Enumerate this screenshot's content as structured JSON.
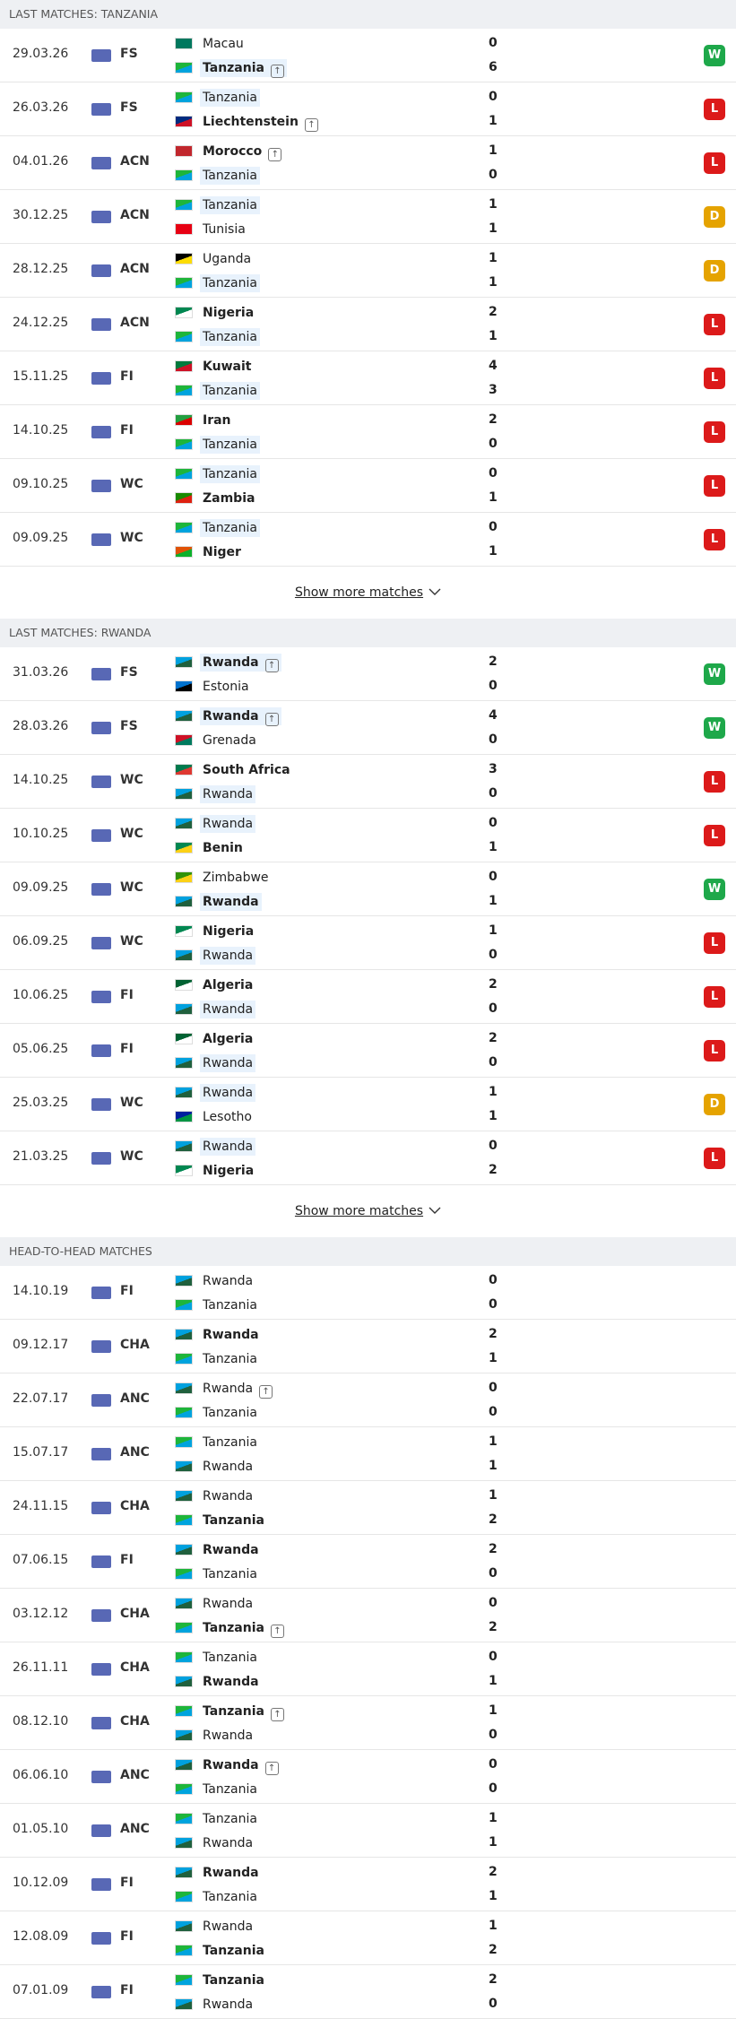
{
  "sections": [
    {
      "title": "LAST MATCHES: TANZANIA",
      "show_more": "Show more matches",
      "matches": [
        {
          "date": "29.03.26",
          "competition": "FS",
          "home": {
            "name": "Macau",
            "score": 0
          },
          "away": {
            "name": "Tanzania",
            "score": 6,
            "bold": true,
            "highlight": true,
            "arrow": true
          },
          "result": "W"
        },
        {
          "date": "26.03.26",
          "competition": "FS",
          "home": {
            "name": "Tanzania",
            "score": 0,
            "highlight": true
          },
          "away": {
            "name": "Liechtenstein",
            "score": 1,
            "bold": true,
            "arrow": true
          },
          "result": "L"
        },
        {
          "date": "04.01.26",
          "competition": "ACN",
          "home": {
            "name": "Morocco",
            "score": 1,
            "bold": true,
            "arrow": true
          },
          "away": {
            "name": "Tanzania",
            "score": 0,
            "highlight": true
          },
          "result": "L"
        },
        {
          "date": "30.12.25",
          "competition": "ACN",
          "home": {
            "name": "Tanzania",
            "score": 1,
            "highlight": true
          },
          "away": {
            "name": "Tunisia",
            "score": 1
          },
          "result": "D"
        },
        {
          "date": "28.12.25",
          "competition": "ACN",
          "home": {
            "name": "Uganda",
            "score": 1
          },
          "away": {
            "name": "Tanzania",
            "score": 1,
            "highlight": true
          },
          "result": "D"
        },
        {
          "date": "24.12.25",
          "competition": "ACN",
          "home": {
            "name": "Nigeria",
            "score": 2,
            "bold": true
          },
          "away": {
            "name": "Tanzania",
            "score": 1,
            "highlight": true
          },
          "result": "L"
        },
        {
          "date": "15.11.25",
          "competition": "FI",
          "home": {
            "name": "Kuwait",
            "score": 4,
            "bold": true
          },
          "away": {
            "name": "Tanzania",
            "score": 3,
            "highlight": true
          },
          "result": "L"
        },
        {
          "date": "14.10.25",
          "competition": "FI",
          "home": {
            "name": "Iran",
            "score": 2,
            "bold": true
          },
          "away": {
            "name": "Tanzania",
            "score": 0,
            "highlight": true
          },
          "result": "L"
        },
        {
          "date": "09.10.25",
          "competition": "WC",
          "home": {
            "name": "Tanzania",
            "score": 0,
            "highlight": true
          },
          "away": {
            "name": "Zambia",
            "score": 1,
            "bold": true
          },
          "result": "L"
        },
        {
          "date": "09.09.25",
          "competition": "WC",
          "home": {
            "name": "Tanzania",
            "score": 0,
            "highlight": true
          },
          "away": {
            "name": "Niger",
            "score": 1,
            "bold": true
          },
          "result": "L"
        }
      ]
    },
    {
      "title": "LAST MATCHES: RWANDA",
      "show_more": "Show more matches",
      "matches": [
        {
          "date": "31.03.26",
          "competition": "FS",
          "home": {
            "name": "Rwanda",
            "score": 2,
            "bold": true,
            "highlight": true,
            "arrow": true
          },
          "away": {
            "name": "Estonia",
            "score": 0
          },
          "result": "W"
        },
        {
          "date": "28.03.26",
          "competition": "FS",
          "home": {
            "name": "Rwanda",
            "score": 4,
            "bold": true,
            "highlight": true,
            "arrow": true
          },
          "away": {
            "name": "Grenada",
            "score": 0
          },
          "result": "W"
        },
        {
          "date": "14.10.25",
          "competition": "WC",
          "home": {
            "name": "South Africa",
            "score": 3,
            "bold": true
          },
          "away": {
            "name": "Rwanda",
            "score": 0,
            "highlight": true
          },
          "result": "L"
        },
        {
          "date": "10.10.25",
          "competition": "WC",
          "home": {
            "name": "Rwanda",
            "score": 0,
            "highlight": true
          },
          "away": {
            "name": "Benin",
            "score": 1,
            "bold": true
          },
          "result": "L"
        },
        {
          "date": "09.09.25",
          "competition": "WC",
          "home": {
            "name": "Zimbabwe",
            "score": 0
          },
          "away": {
            "name": "Rwanda",
            "score": 1,
            "bold": true,
            "highlight": true
          },
          "result": "W"
        },
        {
          "date": "06.09.25",
          "competition": "WC",
          "home": {
            "name": "Nigeria",
            "score": 1,
            "bold": true
          },
          "away": {
            "name": "Rwanda",
            "score": 0,
            "highlight": true
          },
          "result": "L"
        },
        {
          "date": "10.06.25",
          "competition": "FI",
          "home": {
            "name": "Algeria",
            "score": 2,
            "bold": true
          },
          "away": {
            "name": "Rwanda",
            "score": 0,
            "highlight": true
          },
          "result": "L"
        },
        {
          "date": "05.06.25",
          "competition": "FI",
          "home": {
            "name": "Algeria",
            "score": 2,
            "bold": true
          },
          "away": {
            "name": "Rwanda",
            "score": 0,
            "highlight": true
          },
          "result": "L"
        },
        {
          "date": "25.03.25",
          "competition": "WC",
          "home": {
            "name": "Rwanda",
            "score": 1,
            "highlight": true
          },
          "away": {
            "name": "Lesotho",
            "score": 1
          },
          "result": "D"
        },
        {
          "date": "21.03.25",
          "competition": "WC",
          "home": {
            "name": "Rwanda",
            "score": 0,
            "highlight": true
          },
          "away": {
            "name": "Nigeria",
            "score": 2,
            "bold": true
          },
          "result": "L"
        }
      ]
    },
    {
      "title": "HEAD-TO-HEAD MATCHES",
      "matches": [
        {
          "date": "14.10.19",
          "competition": "FI",
          "home": {
            "name": "Rwanda",
            "score": 0
          },
          "away": {
            "name": "Tanzania",
            "score": 0
          }
        },
        {
          "date": "09.12.17",
          "competition": "CHA",
          "home": {
            "name": "Rwanda",
            "score": 2,
            "bold": true
          },
          "away": {
            "name": "Tanzania",
            "score": 1
          }
        },
        {
          "date": "22.07.17",
          "competition": "ANC",
          "home": {
            "name": "Rwanda",
            "score": 0,
            "arrow": true
          },
          "away": {
            "name": "Tanzania",
            "score": 0
          }
        },
        {
          "date": "15.07.17",
          "competition": "ANC",
          "home": {
            "name": "Tanzania",
            "score": 1
          },
          "away": {
            "name": "Rwanda",
            "score": 1
          }
        },
        {
          "date": "24.11.15",
          "competition": "CHA",
          "home": {
            "name": "Rwanda",
            "score": 1
          },
          "away": {
            "name": "Tanzania",
            "score": 2,
            "bold": true
          }
        },
        {
          "date": "07.06.15",
          "competition": "FI",
          "home": {
            "name": "Rwanda",
            "score": 2,
            "bold": true
          },
          "away": {
            "name": "Tanzania",
            "score": 0
          }
        },
        {
          "date": "03.12.12",
          "competition": "CHA",
          "home": {
            "name": "Rwanda",
            "score": 0
          },
          "away": {
            "name": "Tanzania",
            "score": 2,
            "bold": true,
            "arrow": true
          }
        },
        {
          "date": "26.11.11",
          "competition": "CHA",
          "home": {
            "name": "Tanzania",
            "score": 0
          },
          "away": {
            "name": "Rwanda",
            "score": 1,
            "bold": true
          }
        },
        {
          "date": "08.12.10",
          "competition": "CHA",
          "home": {
            "name": "Tanzania",
            "score": 1,
            "bold": true,
            "arrow": true
          },
          "away": {
            "name": "Rwanda",
            "score": 0
          }
        },
        {
          "date": "06.06.10",
          "competition": "ANC",
          "home": {
            "name": "Rwanda",
            "score": 0,
            "bold": true,
            "arrow": true
          },
          "away": {
            "name": "Tanzania",
            "score": 0
          }
        },
        {
          "date": "01.05.10",
          "competition": "ANC",
          "home": {
            "name": "Tanzania",
            "score": 1
          },
          "away": {
            "name": "Rwanda",
            "score": 1
          }
        },
        {
          "date": "10.12.09",
          "competition": "FI",
          "home": {
            "name": "Rwanda",
            "score": 2,
            "bold": true
          },
          "away": {
            "name": "Tanzania",
            "score": 1
          }
        },
        {
          "date": "12.08.09",
          "competition": "FI",
          "home": {
            "name": "Rwanda",
            "score": 1
          },
          "away": {
            "name": "Tanzania",
            "score": 2,
            "bold": true
          }
        },
        {
          "date": "07.01.09",
          "competition": "FI",
          "home": {
            "name": "Tanzania",
            "score": 2,
            "bold": true
          },
          "away": {
            "name": "Rwanda",
            "score": 0
          }
        }
      ]
    }
  ],
  "flags": {
    "Macau": [
      "#00785e",
      "#00785e"
    ],
    "Tanzania": [
      "#1eb53a",
      "#00a3dd"
    ],
    "Liechtenstein": [
      "#002b7f",
      "#ce1126"
    ],
    "Morocco": [
      "#c1272d",
      "#c1272d"
    ],
    "Tunisia": [
      "#e70013",
      "#e70013"
    ],
    "Uganda": [
      "#000000",
      "#fcdc04"
    ],
    "Nigeria": [
      "#008751",
      "#ffffff"
    ],
    "Kuwait": [
      "#007a3d",
      "#ce1126"
    ],
    "Iran": [
      "#239f40",
      "#da0000"
    ],
    "Zambia": [
      "#198a00",
      "#de2010"
    ],
    "Niger": [
      "#e05206",
      "#0db02b"
    ],
    "Rwanda": [
      "#00a1de",
      "#20603d"
    ],
    "Estonia": [
      "#0072ce",
      "#000000"
    ],
    "Grenada": [
      "#ce1126",
      "#007a5e"
    ],
    "South Africa": [
      "#007a4d",
      "#de3831"
    ],
    "Benin": [
      "#008751",
      "#fcd116"
    ],
    "Zimbabwe": [
      "#319208",
      "#fcd116"
    ],
    "Algeria": [
      "#006233",
      "#ffffff"
    ],
    "Lesotho": [
      "#00209f",
      "#009543"
    ]
  },
  "result_colors": {
    "W": "#1ea84a",
    "L": "#dc1a1a",
    "D": "#e5a300"
  }
}
